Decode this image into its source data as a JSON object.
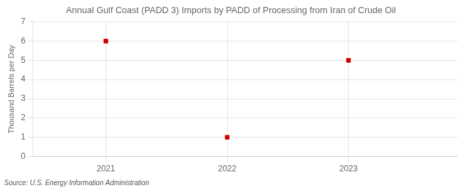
{
  "chart_data": {
    "type": "scatter",
    "title": "Annual Gulf Coast (PADD 3) Imports by PADD of Processing from Iran of Crude Oil",
    "y_label": "Thousand Barrels per Day",
    "annotations": [
      "Source: U.S. Energy Information Administration"
    ],
    "x": [
      2021,
      2022,
      2023
    ],
    "values": [
      6,
      1,
      5
    ],
    "color": "#cc0000",
    "marker": "square",
    "xlim": [
      2020.4,
      2023.9
    ],
    "xticks": [
      2021,
      2022,
      2023
    ],
    "ylim": [
      0,
      7
    ],
    "yticks": [
      0,
      1,
      2,
      3,
      4,
      5,
      6,
      7
    ],
    "grid": true
  }
}
